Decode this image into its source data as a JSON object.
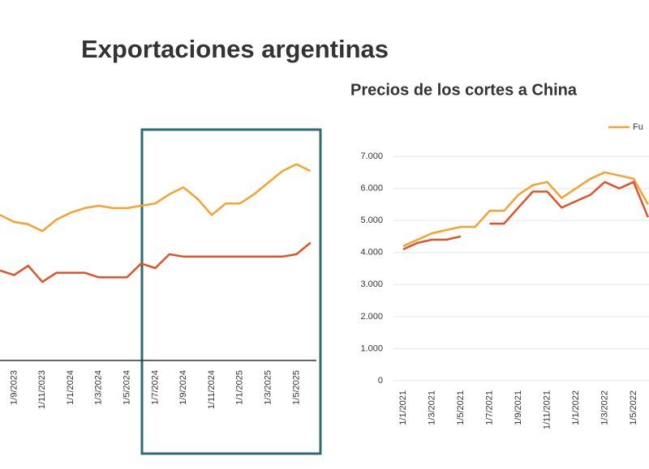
{
  "title": "Exportaciones argentinas",
  "chart_data": [
    {
      "type": "line",
      "categories": [
        null,
        "1/9/2023",
        null,
        "1/11/2023",
        null,
        "1/1/2024",
        null,
        "1/3/2024",
        null,
        "1/5/2024",
        null,
        "1/7/2024",
        null,
        "1/9/2024",
        null,
        "1/11/2024",
        null,
        "1/1/2025",
        null,
        "1/3/2025",
        null,
        "1/5/2025",
        null
      ],
      "ylim": [
        0,
        100
      ],
      "series": [
        {
          "color": "#f7a12f",
          "values": [
            63,
            60,
            59,
            56,
            61,
            64,
            66,
            67,
            66,
            66,
            67,
            68,
            72,
            75,
            70,
            63,
            68,
            68,
            72,
            77,
            82,
            85,
            82
          ]
        },
        {
          "color": "#e0522a",
          "values": [
            39,
            37,
            41,
            34,
            38,
            38,
            38,
            36,
            36,
            36,
            42,
            40,
            46,
            45,
            45,
            45,
            45,
            45,
            45,
            45,
            45,
            46,
            51
          ]
        }
      ]
    },
    {
      "type": "line",
      "title": "Precios de los cortes a China",
      "categories": [
        "1/1/2021",
        null,
        "1/3/2021",
        null,
        "1/5/2021",
        null,
        "1/7/2021",
        null,
        "1/9/2021",
        null,
        "1/11/2021",
        null,
        "1/1/2022",
        null,
        "1/3/2022",
        null,
        "1/5/2022",
        null
      ],
      "ylim": [
        0,
        7000
      ],
      "yticks": [
        0,
        {
          "value": 1000,
          "label": "1.000"
        },
        {
          "value": 2000,
          "label": "2.000"
        },
        {
          "value": 3000,
          "label": "3.000"
        },
        {
          "value": 4000,
          "label": "4.000"
        },
        {
          "value": 5000,
          "label": "5.000"
        },
        {
          "value": 6000,
          "label": "6.000"
        },
        {
          "value": 7000,
          "label": "7.000"
        }
      ],
      "grid": true,
      "series": [
        {
          "name": "Fu",
          "color": "#f7a12f",
          "values": [
            4200,
            4400,
            4600,
            4700,
            4800,
            4800,
            5300,
            5300,
            5800,
            6100,
            6200,
            5700,
            6000,
            6300,
            6500,
            6400,
            6300,
            5500
          ]
        },
        {
          "color": "#e0522a",
          "values": [
            4100,
            4300,
            4400,
            4400,
            4500,
            null,
            4900,
            4900,
            5400,
            5900,
            5900,
            5400,
            5600,
            5800,
            6200,
            6000,
            6200,
            5100
          ]
        }
      ]
    }
  ]
}
